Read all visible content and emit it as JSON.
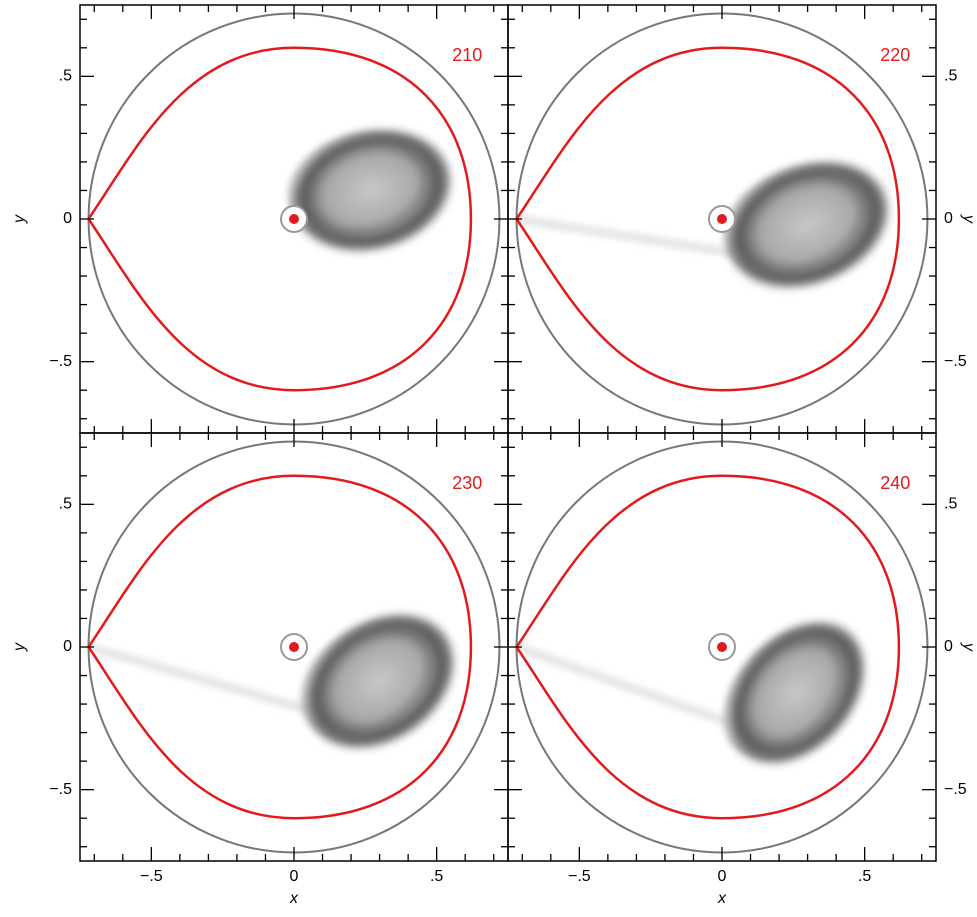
{
  "chart_data": [
    {
      "type": "image",
      "label": "210",
      "xlim": [
        -0.75,
        0.75
      ],
      "ylim": [
        -0.75,
        0.75
      ],
      "xticks": [
        {
          "value": -0.5,
          "label": "−.5"
        },
        0,
        {
          "value": 0.5,
          "label": ".5"
        }
      ],
      "yticks": [
        {
          "value": -0.5,
          "label": "−.5"
        },
        0,
        {
          "value": 0.5,
          "label": ".5"
        }
      ],
      "minorticks": [
        -0.7,
        -0.6,
        -0.4,
        -0.3,
        -0.2,
        -0.1,
        0.1,
        0.2,
        0.3,
        0.4,
        0.6,
        0.7
      ],
      "ylabel": "y",
      "yaxis_side": "left",
      "xticklabels": false,
      "label_color": "#e31a1c"
    },
    {
      "type": "image",
      "label": "220",
      "xlim": [
        -0.75,
        0.75
      ],
      "ylim": [
        -0.75,
        0.75
      ],
      "xticks": [
        {
          "value": -0.5,
          "label": "−.5"
        },
        0,
        {
          "value": 0.5,
          "label": ".5"
        }
      ],
      "yticks": [
        {
          "value": -0.5,
          "label": "−.5"
        },
        0,
        {
          "value": 0.5,
          "label": ".5"
        }
      ],
      "minorticks": [
        -0.7,
        -0.6,
        -0.4,
        -0.3,
        -0.2,
        -0.1,
        0.1,
        0.2,
        0.3,
        0.4,
        0.6,
        0.7
      ],
      "ylabel": "y",
      "yaxis_side": "right",
      "xticklabels": false,
      "label_color": "#e31a1c"
    },
    {
      "type": "image",
      "label": "230",
      "xlim": [
        -0.75,
        0.75
      ],
      "ylim": [
        -0.75,
        0.75
      ],
      "xticks": [
        {
          "value": -0.5,
          "label": "−.5"
        },
        0,
        {
          "value": 0.5,
          "label": ".5"
        }
      ],
      "yticks": [
        {
          "value": -0.5,
          "label": "−.5"
        },
        0,
        {
          "value": 0.5,
          "label": ".5"
        }
      ],
      "minorticks": [
        -0.7,
        -0.6,
        -0.4,
        -0.3,
        -0.2,
        -0.1,
        0.1,
        0.2,
        0.3,
        0.4,
        0.6,
        0.7
      ],
      "xlabel": "x",
      "ylabel": "y",
      "yaxis_side": "left",
      "xticklabels": true,
      "label_color": "#e31a1c"
    },
    {
      "type": "image",
      "label": "240",
      "xlim": [
        -0.75,
        0.75
      ],
      "ylim": [
        -0.75,
        0.75
      ],
      "xticks": [
        {
          "value": -0.5,
          "label": "−.5"
        },
        0,
        {
          "value": 0.5,
          "label": ".5"
        }
      ],
      "yticks": [
        {
          "value": -0.5,
          "label": "−.5"
        },
        0,
        {
          "value": 0.5,
          "label": ".5"
        }
      ],
      "minorticks": [
        -0.7,
        -0.6,
        -0.4,
        -0.3,
        -0.2,
        -0.1,
        0.1,
        0.2,
        0.3,
        0.4,
        0.6,
        0.7
      ],
      "xlabel": "x",
      "ylabel": "y",
      "yaxis_side": "right",
      "xticklabels": true,
      "label_color": "#e31a1c"
    }
  ]
}
